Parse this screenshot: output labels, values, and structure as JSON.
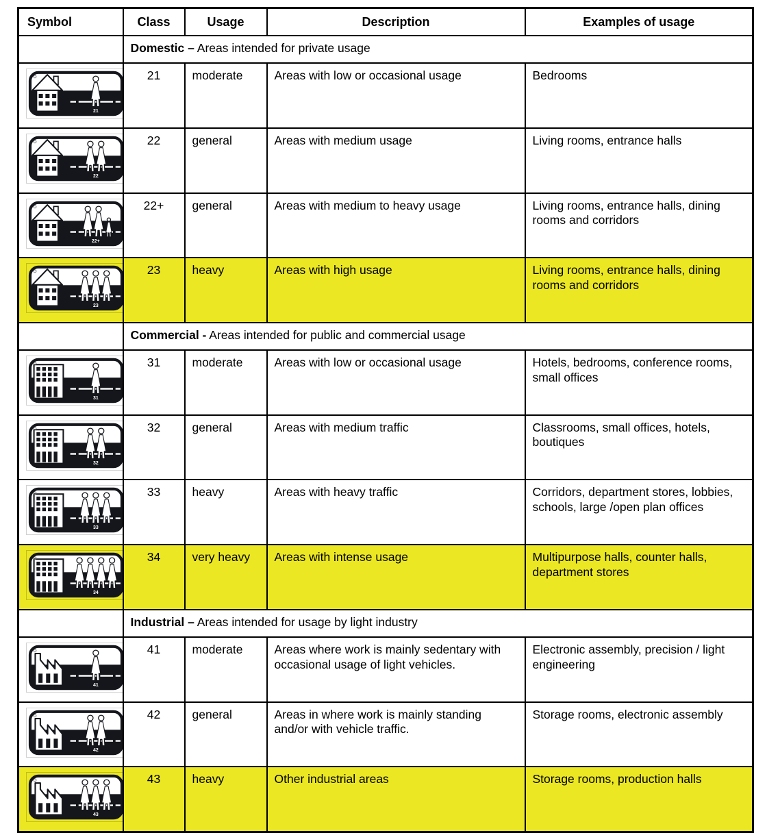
{
  "colors": {
    "highlight": "#ebe723",
    "border": "#000000",
    "pictogram_dark": "#14161b",
    "text": "#000000"
  },
  "table": {
    "headers": [
      "Symbol",
      "Class",
      "Usage",
      "Description",
      "Examples of usage"
    ],
    "sections": [
      {
        "title_bold": "Domestic –",
        "title_rest": "Areas intended for private usage",
        "rows": [
          {
            "class": "21",
            "usage": "moderate",
            "description": "Areas with low or occasional usage",
            "examples": "Bedrooms",
            "highlighted": false,
            "symbol": {
              "icon": "house-icon",
              "building": "house",
              "persons": 1,
              "child": false,
              "label": "21"
            }
          },
          {
            "class": "22",
            "usage": "general",
            "description": "Areas with medium usage",
            "examples": "Living rooms, entrance halls",
            "highlighted": false,
            "symbol": {
              "icon": "house-icon",
              "building": "house",
              "persons": 2,
              "child": false,
              "label": "22"
            }
          },
          {
            "class": "22+",
            "usage": "general",
            "description": "Areas with medium to heavy usage",
            "examples": "Living rooms, entrance halls, dining rooms and corridors",
            "highlighted": false,
            "symbol": {
              "icon": "house-icon",
              "building": "house",
              "persons": 2,
              "child": true,
              "label": "22+"
            }
          },
          {
            "class": "23",
            "usage": "heavy",
            "description": "Areas with high usage",
            "examples": "Living rooms, entrance halls, dining rooms and corridors",
            "highlighted": true,
            "symbol": {
              "icon": "house-icon",
              "building": "house",
              "persons": 3,
              "child": false,
              "label": "23"
            }
          }
        ]
      },
      {
        "title_bold": "Commercial -",
        "title_rest": "Areas intended for public and commercial usage",
        "rows": [
          {
            "class": "31",
            "usage": "moderate",
            "description": "Areas with low or occasional usage",
            "examples": "Hotels, bedrooms, conference rooms, small offices",
            "highlighted": false,
            "symbol": {
              "icon": "office-building-icon",
              "building": "office",
              "persons": 1,
              "child": false,
              "label": "31"
            }
          },
          {
            "class": "32",
            "usage": "general",
            "description": "Areas with medium traffic",
            "examples": "Classrooms, small offices, hotels, boutiques",
            "highlighted": false,
            "symbol": {
              "icon": "office-building-icon",
              "building": "office",
              "persons": 2,
              "child": false,
              "label": "32"
            }
          },
          {
            "class": "33",
            "usage": "heavy",
            "description": "Areas with heavy traffic",
            "examples": "Corridors, department stores, lobbies, schools, large /open plan offices",
            "highlighted": false,
            "symbol": {
              "icon": "office-building-icon",
              "building": "office",
              "persons": 3,
              "child": false,
              "label": "33"
            }
          },
          {
            "class": "34",
            "usage": "very heavy",
            "description": "Areas with intense usage",
            "examples": "Multipurpose halls, counter halls, department stores",
            "highlighted": true,
            "symbol": {
              "icon": "office-building-icon",
              "building": "office",
              "persons": 4,
              "child": false,
              "label": "34"
            }
          }
        ]
      },
      {
        "title_bold": "Industrial –",
        "title_rest": "Areas intended for usage by light industry",
        "rows": [
          {
            "class": "41",
            "usage": "moderate",
            "description": "Areas where work is mainly sedentary with occasional usage of light vehicles.",
            "examples": "Electronic assembly, precision / light engineering",
            "highlighted": false,
            "symbol": {
              "icon": "factory-icon",
              "building": "factory",
              "persons": 1,
              "child": false,
              "label": "41"
            }
          },
          {
            "class": "42",
            "usage": "general",
            "description": "Areas in where work is mainly standing and/or with vehicle traffic.",
            "examples": "Storage rooms, electronic assembly",
            "highlighted": false,
            "symbol": {
              "icon": "factory-icon",
              "building": "factory",
              "persons": 2,
              "child": false,
              "label": "42"
            }
          },
          {
            "class": "43",
            "usage": "heavy",
            "description": "Other industrial areas",
            "examples": "Storage rooms, production halls",
            "highlighted": true,
            "symbol": {
              "icon": "factory-icon",
              "building": "factory",
              "persons": 3,
              "child": false,
              "label": "43"
            }
          }
        ]
      }
    ]
  }
}
